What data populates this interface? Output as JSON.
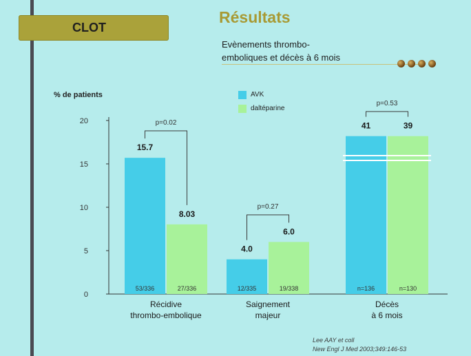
{
  "header": {
    "badge": "CLOT",
    "title": "Résultats",
    "subtitle_line1": "Evènements thrombo-",
    "subtitle_line2": "emboliques et décès à 6 mois"
  },
  "citation": {
    "line1": "Lee AAY et coll",
    "line2": "New Engl J Med 2003;349:146-53"
  },
  "colors": {
    "avk": "#45cde8",
    "dalteparine": "#a8f29a",
    "badge": "#aaa23a",
    "title": "#a89a34"
  },
  "chart_data": {
    "type": "bar",
    "ylabel": "% de patients",
    "ylim": [
      0,
      20
    ],
    "yticks": [
      "0",
      "5",
      "10",
      "15",
      "20"
    ],
    "categories": [
      "Récidive thrombo-embolique",
      "Saignement majeur",
      "Décès à 6 mois"
    ],
    "category_lines": [
      [
        "Récidive",
        "thrombo-embolique"
      ],
      [
        "Saignement",
        "majeur"
      ],
      [
        "Décès",
        "à 6 mois"
      ]
    ],
    "series": [
      {
        "name": "AVK",
        "values": [
          15.7,
          4.0,
          41
        ],
        "labels": [
          "15.7",
          "4.0",
          "41"
        ],
        "counts": [
          "53/336",
          "12/335",
          "n=136"
        ]
      },
      {
        "name": "daltéparine",
        "values": [
          8.03,
          6.0,
          39
        ],
        "labels": [
          "8.03",
          "6.0",
          "39"
        ],
        "counts": [
          "27/336",
          "19/338",
          "n=130"
        ]
      }
    ],
    "pvalues": [
      "p=0.02",
      "p=0.27",
      "p=0.53"
    ],
    "axis_break": "Décès à 6 mois"
  }
}
